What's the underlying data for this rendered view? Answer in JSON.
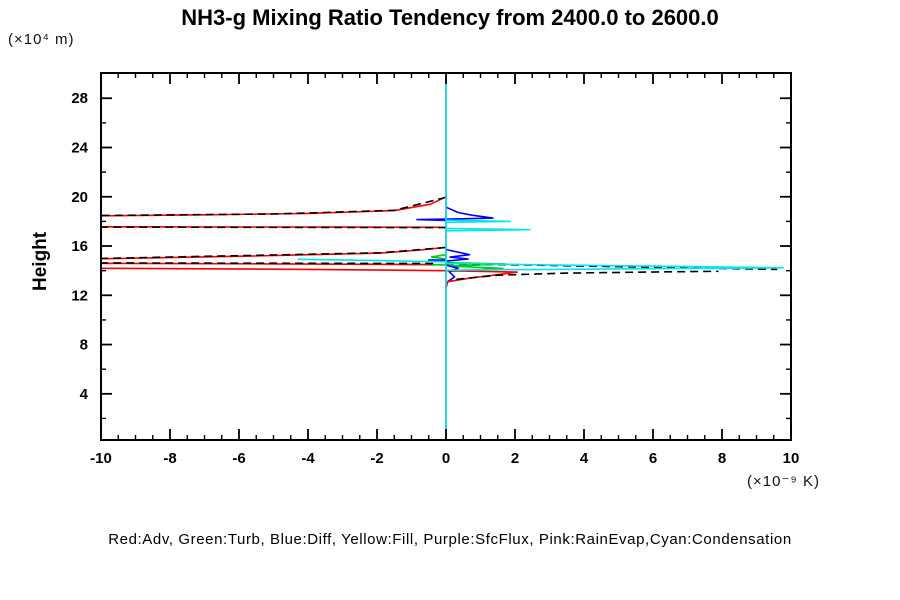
{
  "title": "NH3-g Mixing Ratio Tendency from 2400.0 to 2600.0",
  "legend_text": "Red:Adv, Green:Turb, Blue:Diff, Yellow:Fill, Purple:SfcFlux, Pink:RainEvap,Cyan:Condensation",
  "chart_data": {
    "type": "line",
    "title": "NH3-g Mixing Ratio Tendency from 2400.0 to 2600.0",
    "xlabel": "",
    "ylabel": "Height",
    "y_unit_label": "(×10⁴ m)",
    "x_unit_label": "(×10⁻⁹ K)",
    "xlim": [
      -10,
      10
    ],
    "ylim": [
      0.25,
      30.05
    ],
    "x_major_ticks": [
      -10,
      -8,
      -6,
      -4,
      -2,
      0,
      2,
      4,
      6,
      8,
      10
    ],
    "x_minor_step": 0.5,
    "y_major_ticks": [
      4,
      8,
      12,
      16,
      20,
      24,
      28
    ],
    "y_minor_ticks": [
      2,
      6,
      10,
      14,
      18,
      22,
      26
    ],
    "grid": false,
    "legend_position": "bottom-text-key",
    "zero_line_x": 0,
    "series": [
      {
        "name": "Fill",
        "legend_key": "Yellow:Fill",
        "color": "#FFFF00",
        "dash": null,
        "paths": [
          [
            [
              0,
              30.05
            ],
            [
              0,
              0.25
            ]
          ]
        ]
      },
      {
        "name": "SfcFlux",
        "legend_key": "Purple:SfcFlux",
        "color": "#9900CC",
        "dash": null,
        "paths": [
          [
            [
              0,
              30.05
            ],
            [
              0,
              0.25
            ]
          ]
        ]
      },
      {
        "name": "RainEvap",
        "legend_key": "Pink:RainEvap",
        "color": "#FF99CC",
        "dash": null,
        "paths": [
          [
            [
              0,
              30.05
            ],
            [
              0,
              0.25
            ]
          ]
        ]
      },
      {
        "name": "Turb",
        "legend_key": "Green:Turb",
        "color": "#00CC00",
        "dash": null,
        "paths": [
          [
            [
              0,
              15.3
            ],
            [
              -0.42,
              15.12
            ],
            [
              0,
              14.95
            ]
          ],
          [
            [
              -2.5,
              14.53
            ],
            [
              0,
              14.47
            ]
          ],
          [
            [
              0,
              14.65
            ],
            [
              1.71,
              14.55
            ],
            [
              0.12,
              14.37
            ],
            [
              1.65,
              14.18
            ],
            [
              0.06,
              13.95
            ]
          ]
        ]
      },
      {
        "name": "Diff",
        "legend_key": "Blue:Diff",
        "color": "#0000FF",
        "dash": null,
        "paths": [
          [
            [
              0,
              19.15
            ],
            [
              0.35,
              18.72
            ],
            [
              0.75,
              18.5
            ],
            [
              1.1,
              18.37
            ],
            [
              1.36,
              18.27
            ],
            [
              0.3,
              18.2
            ],
            [
              -0.84,
              18.15
            ],
            [
              0,
              18.08
            ]
          ],
          [
            [
              0,
              15.72
            ],
            [
              0.68,
              15.3
            ],
            [
              0.12,
              15.1
            ],
            [
              0.64,
              14.95
            ],
            [
              0.03,
              14.78
            ]
          ],
          [
            [
              -0.52,
              14.87
            ],
            [
              -0.02,
              14.85
            ]
          ],
          [
            [
              0,
              14.45
            ],
            [
              0.35,
              14.2
            ],
            [
              0.1,
              13.9
            ],
            [
              0.25,
              13.5
            ],
            [
              0.05,
              13.1
            ],
            [
              0,
              12.6
            ]
          ]
        ]
      },
      {
        "name": "Adv",
        "legend_key": "Red:Adv",
        "color": "#FF0000",
        "dash": null,
        "paths": [
          [
            [
              0,
              20.0
            ],
            [
              -0.45,
              19.4
            ],
            [
              -1.5,
              18.88
            ],
            [
              -4,
              18.65
            ],
            [
              -7,
              18.54
            ],
            [
              -10.4,
              18.45
            ]
          ],
          [
            [
              -10.4,
              17.56
            ],
            [
              -3,
              17.54
            ],
            [
              0,
              17.52
            ]
          ],
          [
            [
              0,
              15.9
            ],
            [
              -0.75,
              15.68
            ],
            [
              -1.9,
              15.43
            ],
            [
              -5.7,
              15.18
            ],
            [
              -10.4,
              14.95
            ]
          ],
          [
            [
              -10.4,
              14.6
            ],
            [
              -5,
              14.55
            ],
            [
              -0.4,
              14.5
            ]
          ],
          [
            [
              -10.4,
              14.2
            ],
            [
              -4,
              14.1
            ],
            [
              0,
              14.0
            ],
            [
              2.06,
              13.88
            ],
            [
              1.55,
              13.7
            ],
            [
              0.7,
              13.4
            ],
            [
              0.05,
              13.1
            ],
            [
              0,
              12.7
            ]
          ]
        ]
      },
      {
        "name": "Total",
        "legend_key": "",
        "color": "#000000",
        "dash": [
          8,
          5
        ],
        "paths": [
          [
            [
              0,
              19.95
            ],
            [
              -1.5,
              18.9
            ],
            [
              -5,
              18.6
            ],
            [
              -10.4,
              18.47
            ]
          ],
          [
            [
              -10.4,
              17.54
            ],
            [
              0,
              17.5
            ]
          ],
          [
            [
              0,
              15.88
            ],
            [
              -1.9,
              15.45
            ],
            [
              -10.4,
              14.97
            ]
          ],
          [
            [
              -10.4,
              14.63
            ],
            [
              -0.3,
              14.58
            ]
          ],
          [
            [
              0,
              14.56
            ],
            [
              2.5,
              14.45
            ],
            [
              5.5,
              14.3
            ],
            [
              9.6,
              14.1
            ]
          ],
          [
            [
              0.3,
              13.3
            ],
            [
              1.5,
              13.63
            ],
            [
              3.5,
              13.8
            ],
            [
              6.2,
              13.9
            ],
            [
              7.9,
              13.95
            ]
          ]
        ]
      },
      {
        "name": "Condensation",
        "legend_key": "Cyan:Condensation",
        "color": "#00E5EE",
        "dash": null,
        "paths": [
          [
            [
              0,
              30.05
            ],
            [
              0,
              0.25
            ]
          ],
          [
            [
              0,
              18.1
            ],
            [
              1.86,
              18.0
            ],
            [
              0,
              17.93
            ]
          ],
          [
            [
              0,
              17.43
            ],
            [
              1.2,
              17.38
            ],
            [
              2.43,
              17.33
            ],
            [
              1.0,
              17.27
            ],
            [
              0,
              17.24
            ]
          ],
          [
            [
              -4.3,
              14.92
            ],
            [
              -2,
              14.82
            ],
            [
              0,
              14.72
            ]
          ],
          [
            [
              0,
              14.58
            ],
            [
              3,
              14.47
            ],
            [
              6,
              14.37
            ],
            [
              9.77,
              14.23
            ],
            [
              6,
              14.16
            ],
            [
              3,
              14.1
            ],
            [
              0,
              14.04
            ]
          ]
        ]
      }
    ]
  }
}
